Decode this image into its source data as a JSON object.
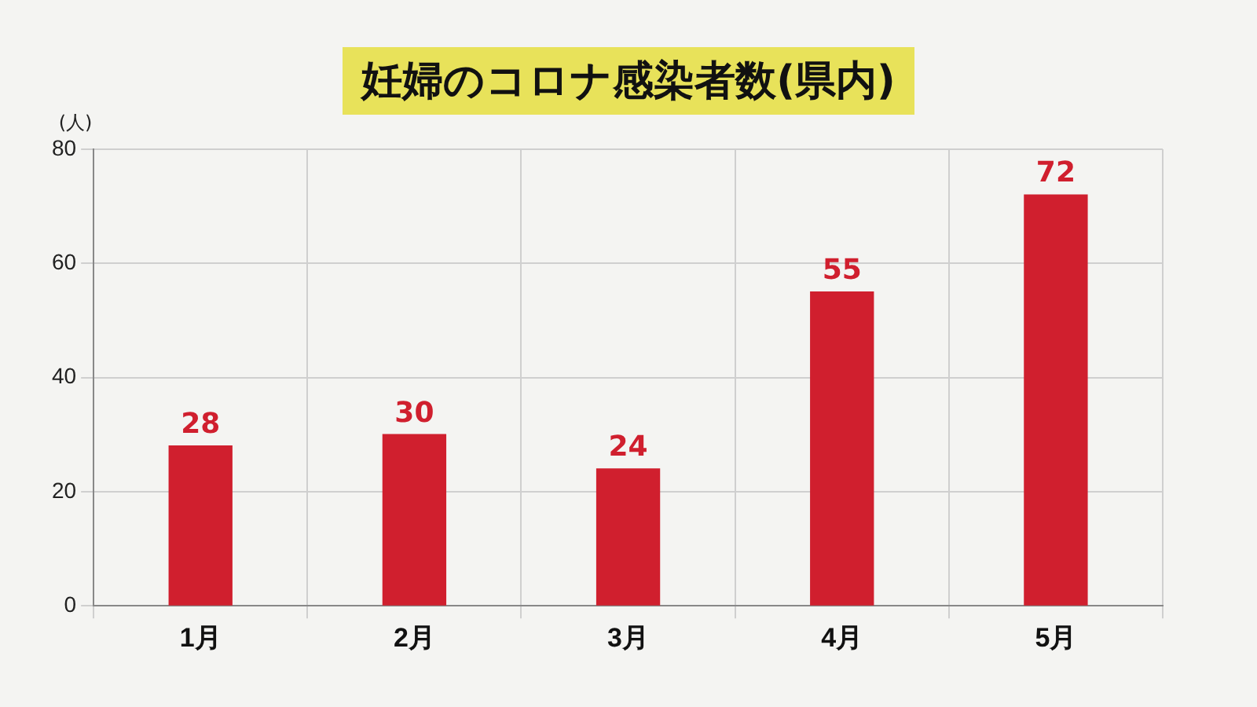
{
  "chart_data": {
    "type": "bar",
    "title": "妊婦のコロナ感染者数(県内)",
    "ylabel": "(人)",
    "categories": [
      "1月",
      "2月",
      "3月",
      "4月",
      "5月"
    ],
    "values": [
      28,
      30,
      24,
      55,
      72
    ],
    "color": "#d01f2e",
    "ylim": [
      0,
      80
    ],
    "yticks": [
      0,
      20,
      40,
      60,
      80
    ],
    "grid": true,
    "data_labels": true,
    "legend": false
  }
}
